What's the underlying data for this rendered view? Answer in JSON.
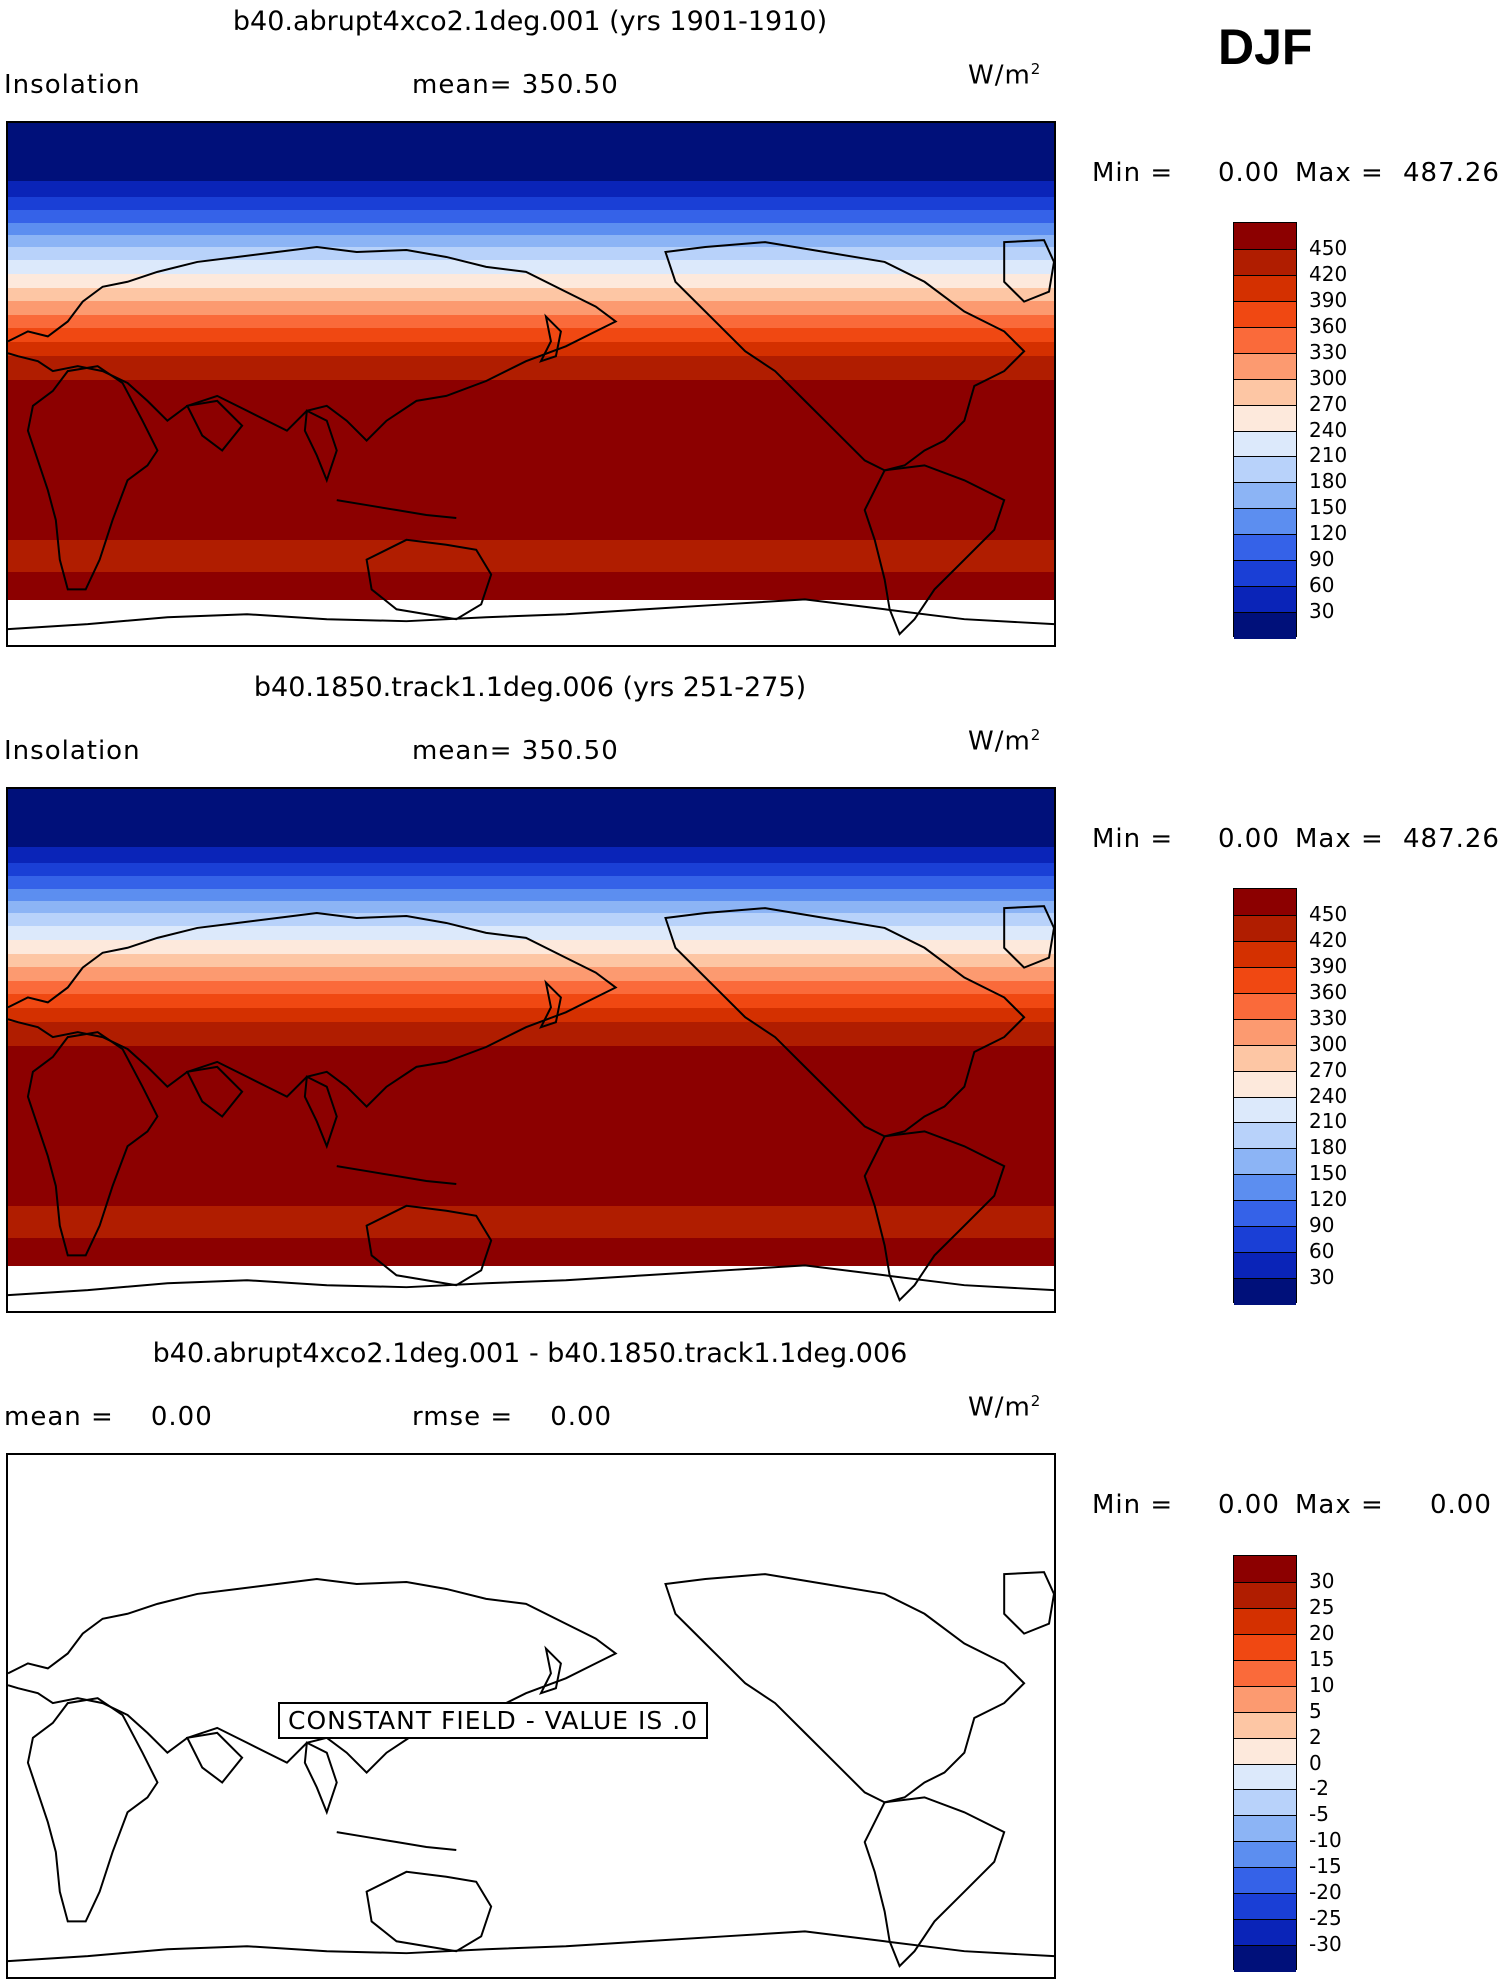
{
  "season": "DJF",
  "panels": [
    {
      "title": "b40.abrupt4xco2.1deg.001 (yrs 1901-1910)",
      "left_label": "Insolation",
      "center_label": "mean= 350.50",
      "units": "W/m",
      "units_sup": "2",
      "min_label": "Min =",
      "min_value": "0.00",
      "max_label": "Max =",
      "max_value": "487.26",
      "filled": true,
      "colorbar_key": "absolute"
    },
    {
      "title": "b40.1850.track1.1deg.006 (yrs 251-275)",
      "left_label": "Insolation",
      "center_label": "mean= 350.50",
      "units": "W/m",
      "units_sup": "2",
      "min_label": "Min =",
      "min_value": "0.00",
      "max_label": "Max =",
      "max_value": "487.26",
      "filled": true,
      "colorbar_key": "absolute"
    },
    {
      "title": "b40.abrupt4xco2.1deg.001 - b40.1850.track1.1deg.006",
      "left_label": "mean =    0.00",
      "center_label": "rmse =    0.00",
      "units": "W/m",
      "units_sup": "2",
      "min_label": "Min =",
      "min_value": "0.00",
      "max_label": "Max =",
      "max_value": "0.00",
      "filled": false,
      "colorbar_key": "difference",
      "constant_field_text": "CONSTANT FIELD - VALUE IS .0"
    }
  ],
  "colorbars": {
    "absolute": {
      "labels": [
        "450",
        "420",
        "390",
        "360",
        "330",
        "300",
        "270",
        "240",
        "210",
        "180",
        "150",
        "120",
        "90",
        "60",
        "30"
      ],
      "colors": [
        "#8c0000",
        "#b01d00",
        "#d43000",
        "#f04812",
        "#fa6a3a",
        "#fc9a70",
        "#fdc6a4",
        "#fde9dc",
        "#dce9fb",
        "#b8d2fa",
        "#8cb4f5",
        "#5c8ef0",
        "#3562e8",
        "#1a3fd6",
        "#0a24b8",
        "#00107a"
      ]
    },
    "difference": {
      "labels": [
        "30",
        "25",
        "20",
        "15",
        "10",
        "5",
        "2",
        "0",
        "-2",
        "-5",
        "-10",
        "-15",
        "-20",
        "-25",
        "-30"
      ],
      "colors": [
        "#8c0000",
        "#b01d00",
        "#d43000",
        "#f04812",
        "#fa6a3a",
        "#fc9a70",
        "#fdc6a4",
        "#fde9dc",
        "#dce9fb",
        "#b8d2fa",
        "#8cb4f5",
        "#5c8ef0",
        "#3562e8",
        "#1a3fd6",
        "#0a24b8",
        "#00107a"
      ]
    }
  },
  "insolation_bands_north_to_south": [
    "#00107a",
    "#0a24b8",
    "#1a3fd6",
    "#3562e8",
    "#5c8ef0",
    "#8cb4f5",
    "#b8d2fa",
    "#dce9fb",
    "#fde9dc",
    "#fdc6a4",
    "#fc9a70",
    "#fa6a3a",
    "#f04812",
    "#d43000",
    "#b01d00",
    "#8c0000",
    "#8c0000",
    "#b01d00",
    "#8c0000"
  ]
}
